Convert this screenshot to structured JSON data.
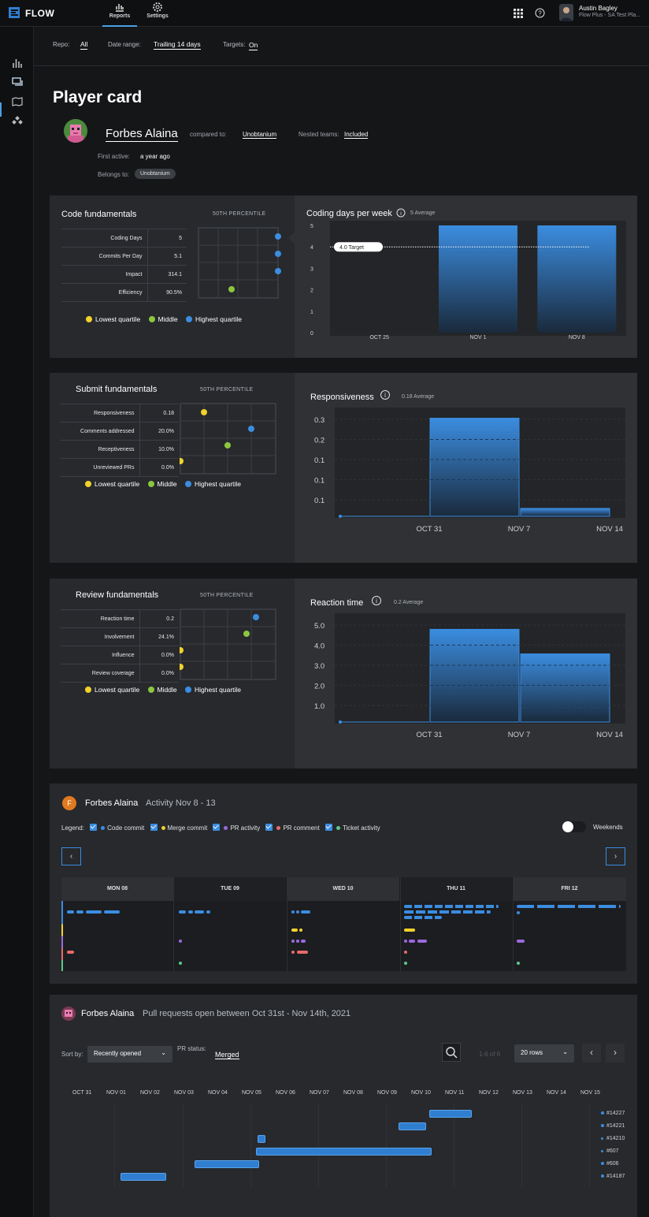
{
  "app": {
    "brand": "FLOW",
    "nav": [
      {
        "label": "Reports"
      },
      {
        "label": "Settings"
      }
    ],
    "user": {
      "name": "Austin Bagley",
      "org": "Flow Plus - SA Test Pla..."
    }
  },
  "filters": {
    "repo_label": "Repo:",
    "repo_value": "All",
    "date_label": "Date range:",
    "date_value": "Trailing 14 days",
    "targets_label": "Targets:",
    "targets_value": "On"
  },
  "page": {
    "title": "Player card"
  },
  "player": {
    "name": "Forbes Alaina",
    "compared_label": "compared to:",
    "compared_value": "Unobtanium",
    "nested_label": "Nested teams:",
    "nested_value": "Included",
    "first_active_label": "First active:",
    "first_active_value": "a year ago",
    "belongs_label": "Belongs to:",
    "belongs_value": "Unobtanium"
  },
  "legend": {
    "low": "Lowest quartile",
    "mid": "Middle",
    "high": "Highest quartile",
    "colors": {
      "low": "#f2d12b",
      "mid": "#8cc63f",
      "high": "#3b8de0"
    }
  },
  "code": {
    "title": "Code fundamentals",
    "percentile": "50TH PERCENTILE",
    "rows": [
      {
        "label": "Coding Days",
        "value": "5",
        "quartile": "high"
      },
      {
        "label": "Commits Per Day",
        "value": "5.1",
        "quartile": "high"
      },
      {
        "label": "Impact",
        "value": "314.1",
        "quartile": "high"
      },
      {
        "label": "Efficiency",
        "value": "90.5%",
        "quartile": "mid"
      }
    ]
  },
  "submit": {
    "title": "Submit fundamentals",
    "percentile": "50TH PERCENTILE",
    "rows": [
      {
        "label": "Responsiveness",
        "value": "0.18",
        "quartile": "low"
      },
      {
        "label": "Comments addressed",
        "value": "20.0%",
        "quartile": "high"
      },
      {
        "label": "Receptiveness",
        "value": "10.0%",
        "quartile": "mid"
      },
      {
        "label": "Unreviewed PRs",
        "value": "0.0%",
        "quartile": "low"
      }
    ]
  },
  "review": {
    "title": "Review fundamentals",
    "percentile": "50TH PERCENTILE",
    "rows": [
      {
        "label": "Reaction time",
        "value": "0.2",
        "quartile": "high"
      },
      {
        "label": "Involvement",
        "value": "24.1%",
        "quartile": "mid"
      },
      {
        "label": "Influence",
        "value": "0.0%",
        "quartile": "low"
      },
      {
        "label": "Review coverage",
        "value": "0.0%",
        "quartile": "low"
      }
    ]
  },
  "chart_data": [
    {
      "type": "bar",
      "title": "Coding days per week",
      "subtitle": "5 Average",
      "categories": [
        "OCT 25",
        "NOV 1",
        "NOV 8"
      ],
      "values": [
        null,
        5,
        5
      ],
      "yticks": [
        "5",
        "4",
        "3",
        "2",
        "1",
        "0"
      ],
      "ylim": [
        0,
        5
      ],
      "target_label": "4.0 Target",
      "target": 4
    },
    {
      "type": "bar",
      "title": "Responsiveness",
      "subtitle": "0.18 Average",
      "categories": [
        "OCT 31",
        "NOV 7",
        "NOV 14"
      ],
      "values": [
        0,
        0.33,
        0.01
      ],
      "yticks": [
        "0.3",
        "0.2",
        "0.1",
        "0.1",
        "0.1"
      ],
      "ylim": [
        0,
        0.35
      ]
    },
    {
      "type": "bar",
      "title": "Reaction time",
      "subtitle": "0.2 Average",
      "categories": [
        "OCT 31",
        "NOV 7",
        "NOV 14"
      ],
      "values": [
        0,
        4.9,
        3.6
      ],
      "yticks": [
        "5.0",
        "4.0",
        "3.0",
        "2.0",
        "1.0"
      ],
      "ylim": [
        0,
        5.5
      ]
    }
  ],
  "activity": {
    "avatar_letter": "F",
    "name": "Forbes Alaina",
    "title": "Activity Nov 8 - 13",
    "legend_label": "Legend:",
    "items": [
      {
        "label": "Code commit",
        "color": "#3b8de0"
      },
      {
        "label": "Merge commit",
        "color": "#f2d12b"
      },
      {
        "label": "PR activity",
        "color": "#9a6ae0"
      },
      {
        "label": "PR comment",
        "color": "#e86a6a"
      },
      {
        "label": "Ticket activity",
        "color": "#5cc98a"
      }
    ],
    "weekends_label": "Weekends",
    "days": [
      "MON 08",
      "TUE 09",
      "WED 10",
      "THU 11",
      "FRI 12"
    ]
  },
  "prs": {
    "name": "Forbes Alaina",
    "title": "Pull requests open between Oct 31st - Nov 14th, 2021",
    "sort_label": "Sort by:",
    "sort_value": "Recently opened",
    "status_label": "PR status:",
    "status_value": "Merged",
    "count": "1-6 of 6",
    "rows_value": "20 rows",
    "dates": [
      "OCT 31",
      "NOV 01",
      "NOV 02",
      "NOV 03",
      "NOV 04",
      "NOV 05",
      "NOV 06",
      "NOV 07",
      "NOV 08",
      "NOV 09",
      "NOV 10",
      "NOV 11",
      "NOV 12",
      "NOV 13",
      "NOV 14",
      "NOV 15"
    ],
    "labels": [
      "#14227",
      "#14221",
      "#14210",
      "#607",
      "#606",
      "#14187"
    ]
  }
}
